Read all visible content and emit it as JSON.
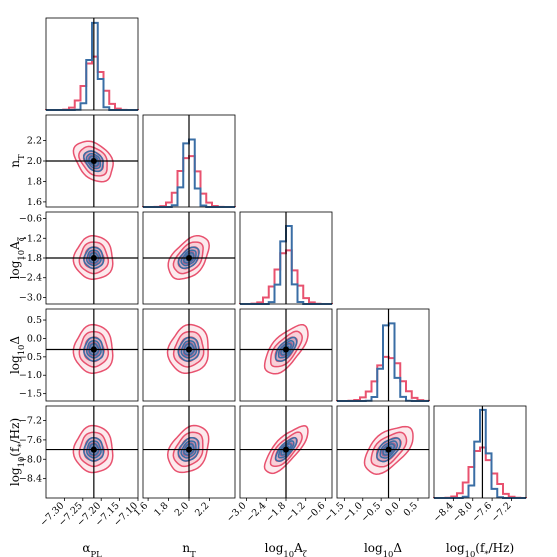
{
  "chart_data": {
    "type": "corner",
    "colors": {
      "wide": "#e8526f",
      "wide_fill": "#e8526f",
      "narrow": "#3a6ea5",
      "narrow_fill": "#4a78b5",
      "truth": "#000000"
    },
    "series": [
      {
        "name": "",
        "color_key": "wide"
      },
      {
        "name": "",
        "color_key": "narrow"
      }
    ],
    "params": [
      {
        "label": "αPL",
        "range": [
          -7.35,
          -7.1
        ],
        "ticks": [
          "-7.30",
          "-7.25",
          "-7.20",
          "-7.15",
          "-7.10"
        ],
        "truth": -7.22,
        "sd_wide": 0.024,
        "sd_narrow": 0.013
      },
      {
        "label": "nT",
        "range": [
          1.55,
          2.45
        ],
        "ticks": [
          "1.6",
          "1.8",
          "2.0",
          "2.2"
        ],
        "truth": 2.0,
        "sd_wide": 0.09,
        "sd_narrow": 0.05
      },
      {
        "label": "log10Aζ",
        "range": [
          -3.2,
          -0.4
        ],
        "ticks": [
          "-3.0",
          "-2.4",
          "-1.8",
          "-1.2",
          "-0.6"
        ],
        "truth": -1.8,
        "sd_wide": 0.3,
        "sd_narrow": 0.16
      },
      {
        "label": "log10Δ",
        "range": [
          -1.7,
          0.8
        ],
        "ticks": [
          "-1.5",
          "-1.0",
          "-0.5",
          "0.0",
          "0.5"
        ],
        "truth": -0.3,
        "sd_wide": 0.3,
        "sd_narrow": 0.16
      },
      {
        "label": "log10(f*/Hz)",
        "range": [
          -8.8,
          -6.9
        ],
        "ticks": [
          "-8.4",
          "-8.0",
          "-7.6",
          "-7.2"
        ],
        "truth": -7.8,
        "sd_wide": 0.22,
        "sd_narrow": 0.12
      }
    ],
    "correlations": [
      [
        1.0,
        -0.35,
        0.0,
        0.0,
        0.0
      ],
      [
        -0.35,
        1.0,
        0.45,
        0.1,
        0.3
      ],
      [
        0.0,
        0.45,
        1.0,
        0.65,
        0.75
      ],
      [
        0.0,
        0.1,
        0.65,
        1.0,
        0.55
      ],
      [
        0.0,
        0.3,
        0.75,
        0.55,
        1.0
      ]
    ],
    "axis_label_parts": [
      {
        "main": "α",
        "sub": "PL"
      },
      {
        "main": "n",
        "sub": "T"
      },
      {
        "main": "log",
        "sub": "10",
        "rest": "A",
        "sub2": "ζ"
      },
      {
        "main": "log",
        "sub": "10",
        "rest": "Δ"
      },
      {
        "main": "log",
        "sub": "10",
        "rest": "(f",
        "sub2": "*",
        "rest2": "/Hz)"
      }
    ],
    "grid": false,
    "legend": "none"
  }
}
